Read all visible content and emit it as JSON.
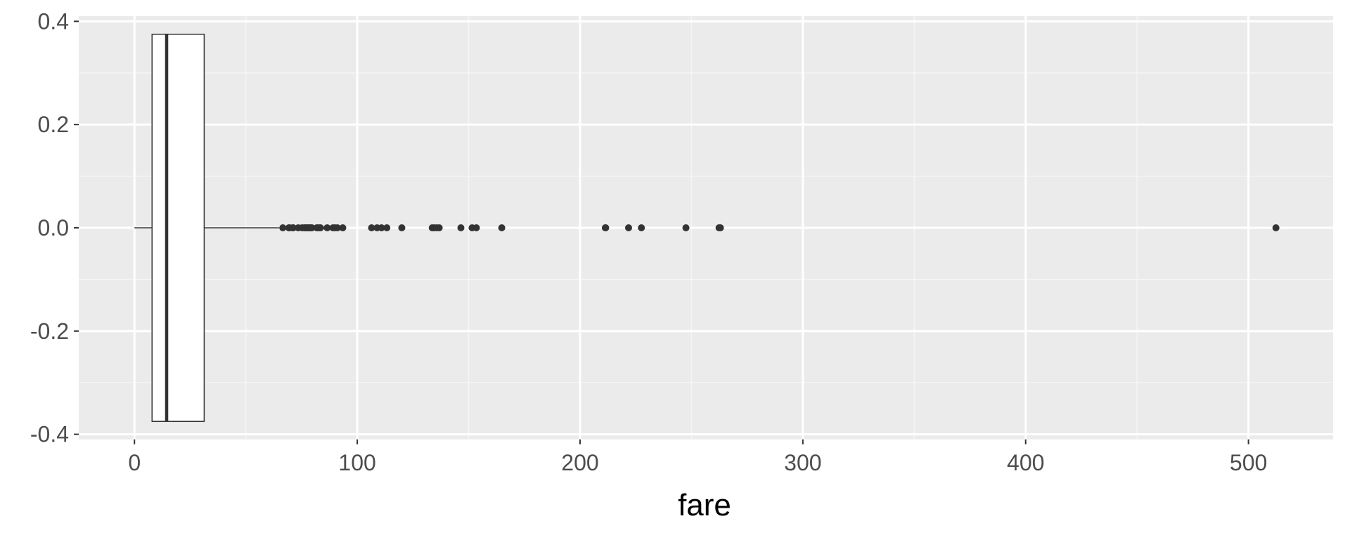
{
  "chart_data": {
    "type": "boxplot",
    "title": "",
    "xlabel": "fare",
    "ylabel": "",
    "xlim": [
      -25,
      538
    ],
    "ylim": [
      -0.41,
      0.41
    ],
    "x_ticks": [
      0,
      100,
      200,
      300,
      400,
      500
    ],
    "x_tick_labels": [
      "0",
      "100",
      "200",
      "300",
      "400",
      "500"
    ],
    "y_ticks": [
      -0.4,
      -0.2,
      0.0,
      0.2,
      0.4
    ],
    "y_tick_labels": [
      "-0.4",
      "-0.2",
      "0.0",
      "0.2",
      "0.4"
    ],
    "grid": true,
    "box": {
      "min": 0,
      "q1": 7.9,
      "median": 14.45,
      "q3": 31.3,
      "whisker_high": 65.0,
      "y_low": -0.375,
      "y_high": 0.375,
      "y_center": 0.0
    },
    "outliers": [
      66.6,
      69.3,
      69.55,
      71.0,
      71.28,
      73.5,
      75.25,
      76.29,
      76.73,
      77.29,
      77.96,
      78.27,
      78.85,
      79.2,
      79.65,
      81.86,
      82.17,
      83.16,
      83.48,
      86.5,
      89.1,
      90.0,
      91.08,
      93.5,
      106.43,
      108.9,
      110.88,
      113.28,
      120.0,
      133.65,
      134.5,
      135.63,
      136.78,
      146.52,
      151.55,
      153.46,
      164.87,
      211.34,
      211.5,
      221.78,
      227.53,
      247.52,
      262.38,
      263.0,
      512.33
    ],
    "colors": {
      "panel_background": "#ebebeb",
      "grid_major": "#ffffff",
      "grid_minor": "#f5f5f5",
      "box_fill": "#ffffff",
      "box_outline": "#333333",
      "points": "#333333",
      "tick_text": "#4d4d4d",
      "axis_title_text": "#000000",
      "tick_marks": "#333333"
    }
  }
}
